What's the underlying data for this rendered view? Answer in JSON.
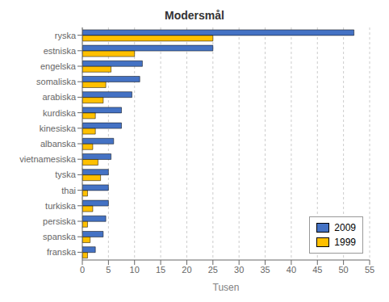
{
  "chart_data": {
    "type": "bar",
    "orientation": "horizontal",
    "title": "Modersmål",
    "xlabel": "Tusen",
    "categories": [
      "ryska",
      "estniska",
      "engelska",
      "somaliska",
      "arabiska",
      "kurdiska",
      "kinesiska",
      "albanska",
      "vietnamesiska",
      "tyska",
      "thai",
      "turkiska",
      "persiska",
      "spanska",
      "franska"
    ],
    "series": [
      {
        "name": "2009",
        "color": "#4472C4",
        "values": [
          52,
          25,
          11.5,
          11,
          9.5,
          7.5,
          7.5,
          6,
          5.5,
          5,
          5,
          5,
          4.5,
          4,
          2.5
        ]
      },
      {
        "name": "1999",
        "color": "#FFC000",
        "values": [
          25,
          10,
          5.5,
          4.5,
          4,
          2.5,
          2.5,
          2,
          3,
          3.5,
          1,
          2,
          1,
          1.5,
          1
        ]
      }
    ],
    "xlim": [
      0,
      55
    ],
    "xticks": [
      0,
      5,
      10,
      15,
      20,
      25,
      30,
      35,
      40,
      45,
      50,
      55
    ],
    "grid": true,
    "legend": "lower right"
  }
}
